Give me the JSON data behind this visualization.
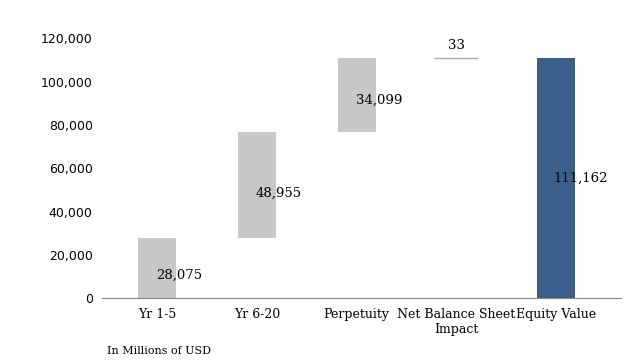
{
  "categories": [
    "Yr 1-5",
    "Yr 6-20",
    "Perpetuity",
    "Net Balance Sheet\nImpact",
    "Equity Value"
  ],
  "values": [
    28075,
    48955,
    34099,
    33,
    111162
  ],
  "bar_color_gray": "#c8c8c8",
  "bar_color_blue": "#3a5f8a",
  "bar_width": 0.38,
  "ylim": [
    0,
    126000
  ],
  "yticks": [
    0,
    20000,
    40000,
    60000,
    80000,
    100000,
    120000
  ],
  "ylabel_text": "In Millions of USD",
  "value_labels": [
    "28,075",
    "48,955",
    "34,099",
    "33",
    "111,162"
  ],
  "bar_bottoms": [
    0,
    28075,
    77030,
    111129,
    0
  ],
  "label_fontsize": 9.5,
  "tick_fontsize": 9,
  "footnote_fontsize": 8,
  "background_color": "#ffffff"
}
